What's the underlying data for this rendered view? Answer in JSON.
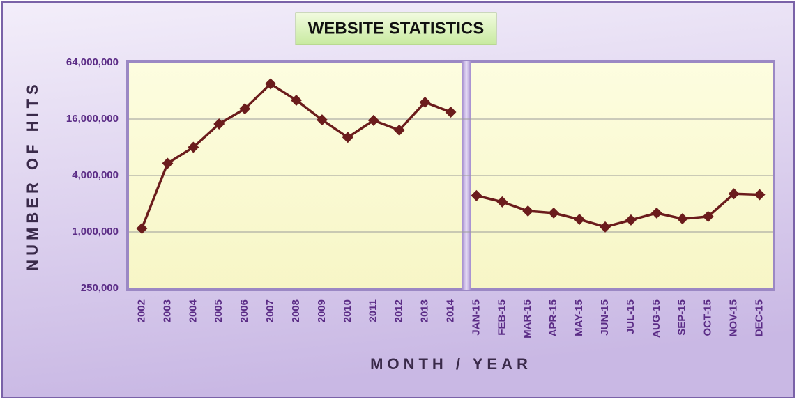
{
  "chart_data": {
    "type": "line",
    "title": "WEBSITE STATISTICS",
    "x_label": "MONTH / YEAR",
    "y_label": "NUMBER OF HITS",
    "categories": [
      "2002",
      "2003",
      "2004",
      "2005",
      "2006",
      "2007",
      "2008",
      "2009",
      "2010",
      "2011",
      "2012",
      "2013",
      "2014",
      "JAN-15",
      "FEB-15",
      "MAR-15",
      "APR-15",
      "MAY-15",
      "JUN-15",
      "JUL-15",
      "AUG-15",
      "SEP-15",
      "OCT-15",
      "NOV-15",
      "DEC-15"
    ],
    "series": [
      {
        "color": "#6b1c1c",
        "values": [
          1090000,
          5400000,
          8000000,
          14200000,
          20600000,
          38000000,
          25400000,
          15700000,
          10200000,
          15500000,
          12200000,
          24200000,
          19000000,
          null,
          null,
          null,
          null,
          null,
          null,
          null,
          null,
          null,
          null,
          null,
          null
        ]
      },
      {
        "color": "#6b1c1c",
        "values": [
          null,
          null,
          null,
          null,
          null,
          null,
          null,
          null,
          null,
          null,
          null,
          null,
          null,
          2440000,
          2090000,
          1670000,
          1590000,
          1360000,
          1130000,
          1340000,
          1590000,
          1380000,
          1460000,
          2550000,
          2500000
        ]
      }
    ],
    "log_scale": true,
    "ylim": [
      250000,
      64000000
    ],
    "yticks": [
      {
        "value": 250000,
        "label": "250,000"
      },
      {
        "value": 1000000,
        "label": "1,000,000"
      },
      {
        "value": 4000000,
        "label": "4,000,000"
      },
      {
        "value": 16000000,
        "label": "16,000,000"
      },
      {
        "value": 64000000,
        "label": "64,000,000"
      }
    ],
    "grid": true
  }
}
